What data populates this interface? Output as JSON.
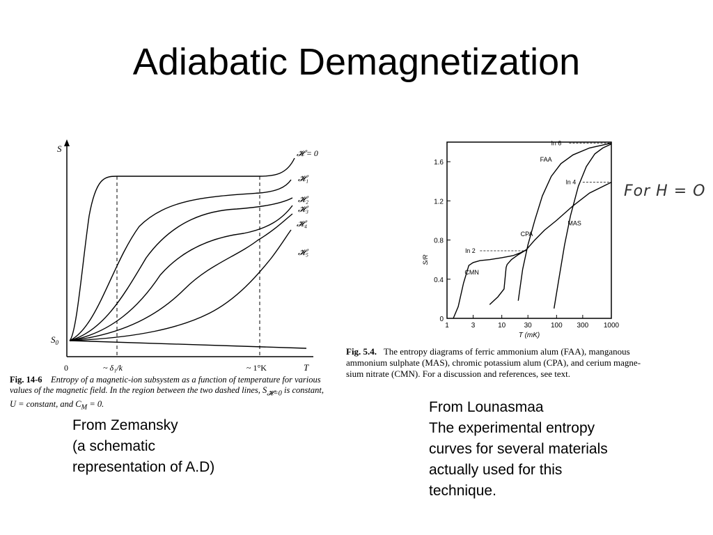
{
  "slide": {
    "title": "Adiabatic Demagnetization",
    "left_caption": [
      "From Zemansky",
      "(a schematic",
      "representation of A.D)"
    ],
    "right_caption": [
      "From Lounasmaa",
      "The experimental entropy",
      "curves for several materials",
      "actually used for this",
      "technique."
    ],
    "handwritten_note": "For H = O"
  },
  "chart_data": [
    {
      "type": "line",
      "figure": "Fig. 14-6",
      "caption": [
        "Entropy of a magnetic-ion subsystem as a function of temperature for various",
        "values of the magnetic field. In the region between the two dashed lines, S",
        "U = constant, and C",
        " = 0."
      ],
      "caption_subscripts": [
        "𝓗=0",
        "M"
      ],
      "caption_tail": " is constant,",
      "ylabel": "S",
      "xlabel": "T",
      "y_origin_label": "S",
      "y_origin_sub": "0",
      "x_origin_label": "0",
      "x_tick_labels": [
        "~ δ₁/k",
        "~ 1°K"
      ],
      "axis_scale": "schematic (no numeric ticks)",
      "dashed_vertical_lines": 2,
      "series": [
        {
          "name": "𝓗 = 0"
        },
        {
          "name": "𝓗₁"
        },
        {
          "name": "𝓗₂"
        },
        {
          "name": "𝓗₃"
        },
        {
          "name": "𝓗₄"
        },
        {
          "name": "𝓗₅"
        }
      ]
    },
    {
      "type": "line",
      "figure": "Fig. 5.4.",
      "caption": [
        "The entropy diagrams of ferric ammonium alum (FAA), manganous",
        "ammonium sulphate (MAS), chromic potassium alum (CPA), and cerium magne-",
        "sium nitrate (CMN). For a discussion and references, see text."
      ],
      "xlabel": "T (mK)",
      "ylabel": "S/R",
      "xscale": "log",
      "xlim": [
        1,
        1000
      ],
      "ylim": [
        0,
        1.8
      ],
      "x_ticks": [
        1,
        3,
        10,
        30,
        100,
        300,
        1000
      ],
      "y_ticks": [
        0,
        0.4,
        0.8,
        1.2,
        1.6
      ],
      "reference_labels": [
        "ln 2",
        "ln 4",
        "ln 6"
      ],
      "reference_values": [
        0.69,
        1.39,
        1.79
      ],
      "series": [
        {
          "name": "CMN",
          "x": [
            1.3,
            1.6,
            2.0,
            2.5,
            3.0,
            4,
            6,
            10,
            16,
            22,
            26,
            28
          ],
          "y": [
            0.0,
            0.12,
            0.36,
            0.54,
            0.57,
            0.59,
            0.6,
            0.62,
            0.64,
            0.67,
            0.69,
            0.7
          ]
        },
        {
          "name": "CPA",
          "x": [
            6,
            8.5,
            11,
            12,
            12.5,
            15,
            20,
            28,
            40,
            60,
            100,
            200,
            400,
            1000
          ],
          "y": [
            0.14,
            0.22,
            0.3,
            0.52,
            0.55,
            0.6,
            0.65,
            0.7,
            0.8,
            0.9,
            1.0,
            1.15,
            1.28,
            1.39
          ]
        },
        {
          "name": "FAA",
          "x": [
            20,
            24,
            30,
            40,
            55,
            80,
            120,
            200,
            400,
            1000
          ],
          "y": [
            0.18,
            0.5,
            0.75,
            1.0,
            1.25,
            1.45,
            1.58,
            1.67,
            1.74,
            1.79
          ]
        },
        {
          "name": "MAS",
          "x": [
            90,
            110,
            140,
            180,
            250,
            350,
            500,
            700,
            1000
          ],
          "y": [
            0.1,
            0.4,
            0.75,
            1.05,
            1.35,
            1.55,
            1.68,
            1.74,
            1.78
          ]
        }
      ]
    }
  ]
}
